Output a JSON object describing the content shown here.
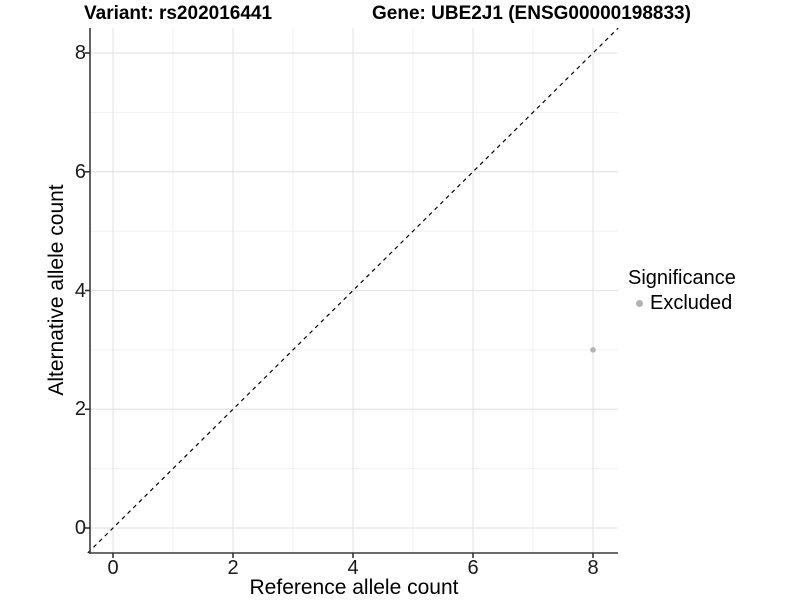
{
  "figure": {
    "title_left": "Variant: rs202016441",
    "title_right": "Gene: UBE2J1 (ENSG00000198833)"
  },
  "chart_data": {
    "type": "scatter",
    "xlabel": "Reference allele count",
    "ylabel": "Alternative allele count",
    "x_ticks": [
      0,
      2,
      4,
      6,
      8
    ],
    "y_ticks": [
      0,
      2,
      4,
      6,
      8
    ],
    "x_minor_ticks": [
      1,
      3,
      5,
      7
    ],
    "y_minor_ticks": [
      1,
      3,
      5,
      7
    ],
    "xlim": [
      -0.42,
      8.42
    ],
    "ylim": [
      -0.42,
      8.42
    ],
    "grid": "major and minor, light gray on white",
    "reference_line": {
      "type": "identity y=x",
      "style": "dashed",
      "color": "#000000"
    },
    "series": [
      {
        "name": "Excluded",
        "color": "#b3b3b3",
        "points": [
          {
            "x": 8,
            "y": 3
          }
        ]
      }
    ],
    "legend": {
      "title": "Significance",
      "position": "right",
      "items": [
        {
          "label": "Excluded",
          "color": "#b3b3b3",
          "marker": "circle"
        }
      ]
    },
    "colors": {
      "grid_major": "#e5e5e5",
      "grid_minor": "#f1f1f1",
      "axis_line": "#3c3c3c",
      "tick": "#333333",
      "text": "#000000"
    }
  }
}
